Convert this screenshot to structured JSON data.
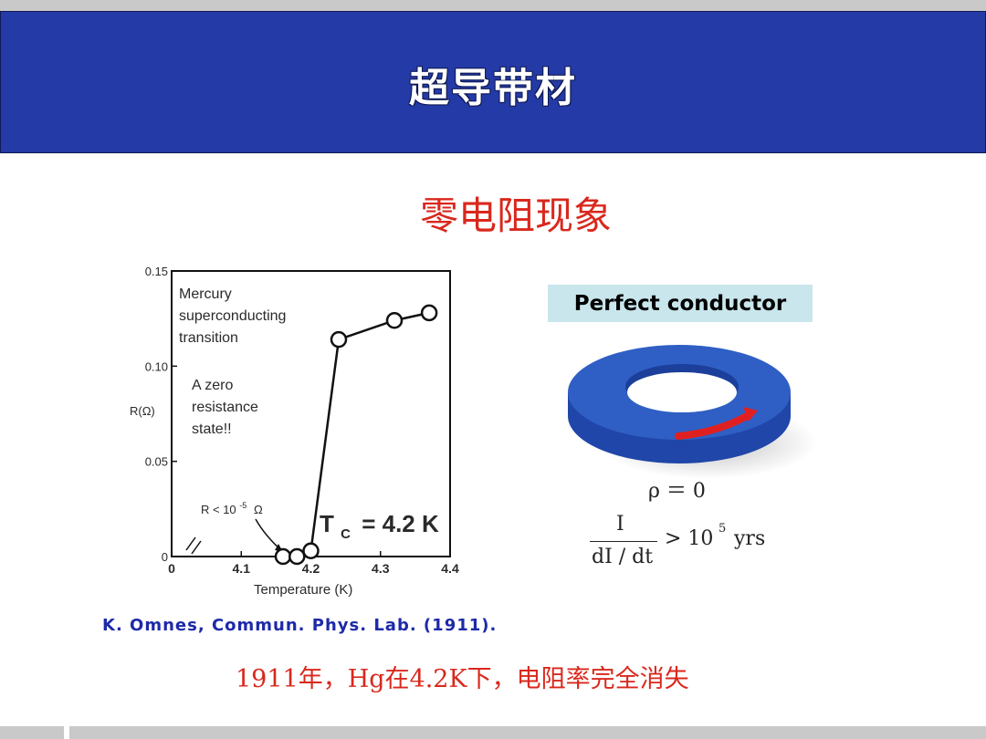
{
  "slide": {
    "title": "超导带材",
    "subtitle": "零电阻现象",
    "citation": "K. Omnes, Commun. Phys. Lab. (1911).",
    "caption": "1911年，Hg在4.2K下，电阻率完全消失"
  },
  "perfect_conductor": {
    "label": "Perfect conductor",
    "rho_formula": "ρ ＝ 0",
    "frac_numerator": "I",
    "frac_denominator": "dI / dt",
    "greater_than": "> 10",
    "exponent": "5",
    "unit": "yrs",
    "ring_color": "#2f5fc4",
    "arrow_color": "#e02020"
  },
  "chart_data": {
    "type": "scatter",
    "xlabel": "Temperature (K)",
    "ylabel": "R(Ω)",
    "x_ticks": [
      "0",
      "4.1",
      "4.2",
      "4.3",
      "4.4"
    ],
    "y_ticks": [
      "0",
      "0.05",
      "0.10",
      "0.15"
    ],
    "xlim": [
      4.0,
      4.4
    ],
    "ylim": [
      0,
      0.15
    ],
    "points": [
      {
        "x": 4.16,
        "y": 0.0
      },
      {
        "x": 4.18,
        "y": 0.0
      },
      {
        "x": 4.2,
        "y": 0.003
      },
      {
        "x": 4.24,
        "y": 0.114
      },
      {
        "x": 4.32,
        "y": 0.124
      },
      {
        "x": 4.37,
        "y": 0.128
      }
    ],
    "annotations": {
      "title_line1": "Mercury",
      "title_line2": "superconducting",
      "title_line3": "transition",
      "note_line1": "A zero",
      "note_line2": "resistance",
      "note_line3": "state!!",
      "r_limit": "R < 10",
      "r_limit_exp": "-5",
      "r_limit_unit": "Ω",
      "tc": "T",
      "tc_sub": "C",
      "tc_value": "= 4.2 K"
    }
  }
}
